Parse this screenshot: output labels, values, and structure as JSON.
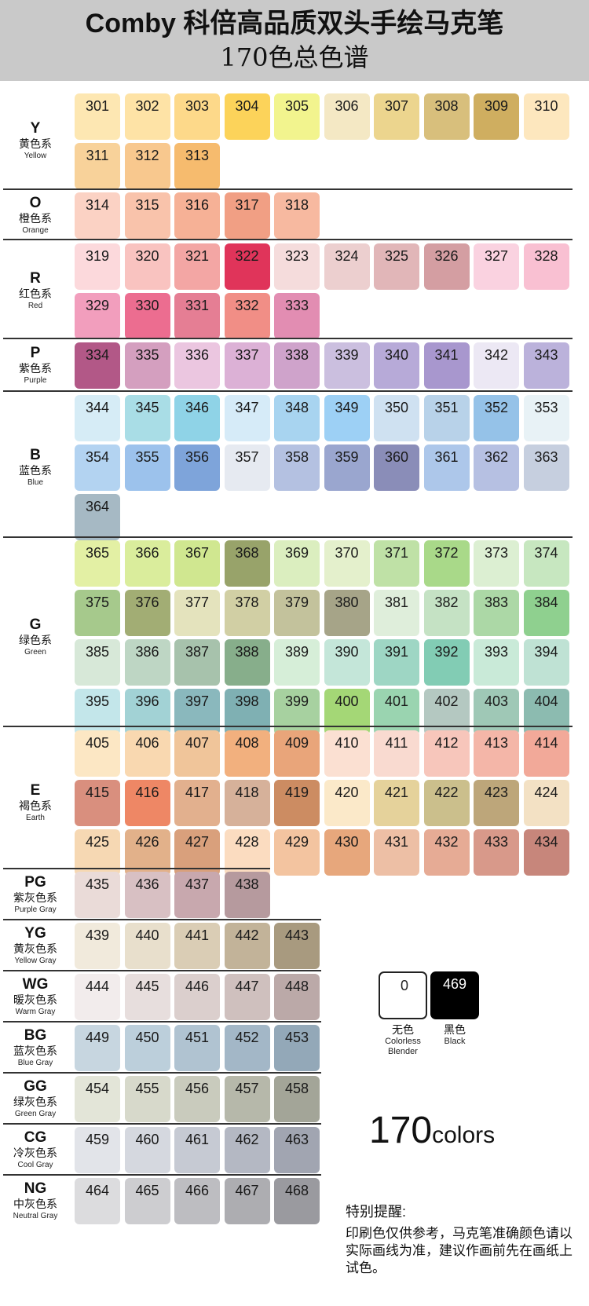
{
  "header": {
    "title_line1": "Comby 科倍高品质双头手绘马克笔",
    "title_line2": "170色总色谱"
  },
  "groups": [
    {
      "letter": "Y",
      "cn": "黄色系",
      "en": "Yellow",
      "swatches": [
        {
          "code": "301",
          "color": "#fde7b2"
        },
        {
          "code": "302",
          "color": "#fee3a6"
        },
        {
          "code": "303",
          "color": "#fdd98a"
        },
        {
          "code": "304",
          "color": "#fcd35a"
        },
        {
          "code": "305",
          "color": "#f2f48e"
        },
        {
          "code": "306",
          "color": "#f4e8c4"
        },
        {
          "code": "307",
          "color": "#ecd58e"
        },
        {
          "code": "308",
          "color": "#d8bf7c"
        },
        {
          "code": "309",
          "color": "#cfae60"
        },
        {
          "code": "310",
          "color": "#fde7be"
        },
        {
          "code": "311",
          "color": "#f8d29a"
        },
        {
          "code": "312",
          "color": "#f8c88e"
        },
        {
          "code": "313",
          "color": "#f6bb6e"
        }
      ]
    },
    {
      "letter": "O",
      "cn": "橙色系",
      "en": "Orange",
      "swatches": [
        {
          "code": "314",
          "color": "#fbd2c4"
        },
        {
          "code": "315",
          "color": "#f9c3ab"
        },
        {
          "code": "316",
          "color": "#f6b196"
        },
        {
          "code": "317",
          "color": "#f19f84"
        },
        {
          "code": "318",
          "color": "#f7b9a0"
        }
      ]
    },
    {
      "letter": "R",
      "cn": "红色系",
      "en": "Red",
      "swatches": [
        {
          "code": "319",
          "color": "#fcd9dc"
        },
        {
          "code": "320",
          "color": "#f9c3c0"
        },
        {
          "code": "321",
          "color": "#f3a6a4"
        },
        {
          "code": "322",
          "color": "#e0345a"
        },
        {
          "code": "323",
          "color": "#f5dcdc"
        },
        {
          "code": "324",
          "color": "#eccfcf"
        },
        {
          "code": "325",
          "color": "#e1b6b8"
        },
        {
          "code": "326",
          "color": "#d49ea2"
        },
        {
          "code": "327",
          "color": "#fad2e0"
        },
        {
          "code": "328",
          "color": "#f9c0d2"
        },
        {
          "code": "329",
          "color": "#f29ebd"
        },
        {
          "code": "330",
          "color": "#ec6d90"
        },
        {
          "code": "331",
          "color": "#e57e94"
        },
        {
          "code": "332",
          "color": "#f18e86"
        },
        {
          "code": "333",
          "color": "#e28db2"
        }
      ]
    },
    {
      "letter": "P",
      "cn": "紫色系",
      "en": "Purple",
      "swatches": [
        {
          "code": "334",
          "color": "#b25887"
        },
        {
          "code": "335",
          "color": "#d49fbf"
        },
        {
          "code": "336",
          "color": "#ebc6e0"
        },
        {
          "code": "337",
          "color": "#dcb1d6"
        },
        {
          "code": "338",
          "color": "#cfa3cb"
        },
        {
          "code": "339",
          "color": "#cbbfdf"
        },
        {
          "code": "340",
          "color": "#b7aad8"
        },
        {
          "code": "341",
          "color": "#a897ce"
        },
        {
          "code": "342",
          "color": "#ece8f4"
        },
        {
          "code": "343",
          "color": "#bbb2db"
        }
      ]
    },
    {
      "letter": "B",
      "cn": "蓝色系",
      "en": "Blue",
      "swatches": [
        {
          "code": "344",
          "color": "#d6ecf6"
        },
        {
          "code": "345",
          "color": "#a9dde6"
        },
        {
          "code": "346",
          "color": "#8fd3e7"
        },
        {
          "code": "347",
          "color": "#d6ebf8"
        },
        {
          "code": "348",
          "color": "#a8d4f0"
        },
        {
          "code": "349",
          "color": "#9dd0f5"
        },
        {
          "code": "350",
          "color": "#cfe1f1"
        },
        {
          "code": "351",
          "color": "#b8d2e9"
        },
        {
          "code": "352",
          "color": "#95c2e8"
        },
        {
          "code": "353",
          "color": "#e8f2f6"
        },
        {
          "code": "354",
          "color": "#b3d3f1"
        },
        {
          "code": "355",
          "color": "#9cc2ec"
        },
        {
          "code": "356",
          "color": "#7ea4da"
        },
        {
          "code": "357",
          "color": "#e6eaf1"
        },
        {
          "code": "358",
          "color": "#b4c1e1"
        },
        {
          "code": "359",
          "color": "#9aa6cf"
        },
        {
          "code": "360",
          "color": "#8a8db8"
        },
        {
          "code": "361",
          "color": "#adc7ea"
        },
        {
          "code": "362",
          "color": "#b6c0e2"
        },
        {
          "code": "363",
          "color": "#c6cfdf"
        },
        {
          "code": "364",
          "color": "#a6b9c4"
        }
      ]
    },
    {
      "letter": "G",
      "cn": "绿色系",
      "en": "Green",
      "swatches": [
        {
          "code": "365",
          "color": "#e3f0a4"
        },
        {
          "code": "366",
          "color": "#daed9c"
        },
        {
          "code": "367",
          "color": "#d0e790"
        },
        {
          "code": "368",
          "color": "#98a36a"
        },
        {
          "code": "369",
          "color": "#dbeebf"
        },
        {
          "code": "370",
          "color": "#e4f0cc"
        },
        {
          "code": "371",
          "color": "#bfe1a6"
        },
        {
          "code": "372",
          "color": "#a9d989"
        },
        {
          "code": "373",
          "color": "#dcefd2"
        },
        {
          "code": "374",
          "color": "#c7e7c0"
        },
        {
          "code": "375",
          "color": "#a6c98c"
        },
        {
          "code": "376",
          "color": "#a2ad74"
        },
        {
          "code": "377",
          "color": "#e4e3bd"
        },
        {
          "code": "378",
          "color": "#d1cfa4"
        },
        {
          "code": "379",
          "color": "#c3c29c"
        },
        {
          "code": "380",
          "color": "#a6a488"
        },
        {
          "code": "381",
          "color": "#dfeedb"
        },
        {
          "code": "382",
          "color": "#c5e2c4"
        },
        {
          "code": "383",
          "color": "#acd8a6"
        },
        {
          "code": "384",
          "color": "#8fd08f"
        },
        {
          "code": "385",
          "color": "#d7e8d8"
        },
        {
          "code": "386",
          "color": "#bed6c4"
        },
        {
          "code": "387",
          "color": "#a7c2ac"
        },
        {
          "code": "388",
          "color": "#87ae8b"
        },
        {
          "code": "389",
          "color": "#d6eed8"
        },
        {
          "code": "390",
          "color": "#c4e6d9"
        },
        {
          "code": "391",
          "color": "#9ed6c4"
        },
        {
          "code": "392",
          "color": "#82ccb4"
        },
        {
          "code": "393",
          "color": "#c9ead8"
        },
        {
          "code": "394",
          "color": "#bfe2d4"
        },
        {
          "code": "395",
          "color": "#c3e6ea"
        },
        {
          "code": "396",
          "color": "#a2d2d5"
        },
        {
          "code": "397",
          "color": "#8ab8bd"
        },
        {
          "code": "398",
          "color": "#7fb0b3"
        },
        {
          "code": "399",
          "color": "#a7d1a0"
        },
        {
          "code": "400",
          "color": "#a4d776"
        },
        {
          "code": "401",
          "color": "#9ad4b0"
        },
        {
          "code": "402",
          "color": "#b4c8c1"
        },
        {
          "code": "403",
          "color": "#9fc8b6"
        },
        {
          "code": "404",
          "color": "#8cbbb0"
        }
      ]
    },
    {
      "letter": "E",
      "cn": "褐色系",
      "en": "Earth",
      "swatches": [
        {
          "code": "405",
          "color": "#fce7c4"
        },
        {
          "code": "406",
          "color": "#f9d8b0"
        },
        {
          "code": "407",
          "color": "#f0c59a"
        },
        {
          "code": "408",
          "color": "#f2b07e"
        },
        {
          "code": "409",
          "color": "#e9a57a"
        },
        {
          "code": "410",
          "color": "#fbe0d2"
        },
        {
          "code": "411",
          "color": "#f9dad0"
        },
        {
          "code": "412",
          "color": "#f7c6bb"
        },
        {
          "code": "413",
          "color": "#f4b6a8"
        },
        {
          "code": "414",
          "color": "#f2a999"
        },
        {
          "code": "415",
          "color": "#d98f7e"
        },
        {
          "code": "416",
          "color": "#ee8765"
        },
        {
          "code": "417",
          "color": "#e2b08e"
        },
        {
          "code": "418",
          "color": "#d6b19a"
        },
        {
          "code": "419",
          "color": "#cc8c62"
        },
        {
          "code": "420",
          "color": "#fbe9c9"
        },
        {
          "code": "421",
          "color": "#e5d29b"
        },
        {
          "code": "422",
          "color": "#cbbf8c"
        },
        {
          "code": "423",
          "color": "#bda67a"
        },
        {
          "code": "424",
          "color": "#f3e1c4"
        },
        {
          "code": "425",
          "color": "#f6d8b3"
        },
        {
          "code": "426",
          "color": "#e2b18a"
        },
        {
          "code": "427",
          "color": "#d9a07c"
        },
        {
          "code": "428",
          "color": "#fbdcc0"
        },
        {
          "code": "429",
          "color": "#f3c4a0"
        },
        {
          "code": "430",
          "color": "#e7a77c"
        },
        {
          "code": "431",
          "color": "#edbfa5"
        },
        {
          "code": "432",
          "color": "#e6ab95"
        },
        {
          "code": "433",
          "color": "#d8998a"
        },
        {
          "code": "434",
          "color": "#c7867b"
        }
      ]
    },
    {
      "letter": "PG",
      "cn": "紫灰色系",
      "en": "Purple Gray",
      "swatches": [
        {
          "code": "435",
          "color": "#eadbd8"
        },
        {
          "code": "436",
          "color": "#d8c0c3"
        },
        {
          "code": "437",
          "color": "#c8a8ae"
        },
        {
          "code": "438",
          "color": "#b69a9e"
        }
      ]
    },
    {
      "letter": "YG",
      "cn": "黄灰色系",
      "en": "Yellow Gray",
      "swatches": [
        {
          "code": "439",
          "color": "#f1eadc"
        },
        {
          "code": "440",
          "color": "#e8dfcc"
        },
        {
          "code": "441",
          "color": "#dacdb5"
        },
        {
          "code": "442",
          "color": "#c2b399"
        },
        {
          "code": "443",
          "color": "#a89a7f"
        }
      ]
    },
    {
      "letter": "WG",
      "cn": "暖灰色系",
      "en": "Warm Gray",
      "swatches": [
        {
          "code": "444",
          "color": "#f2ecec"
        },
        {
          "code": "445",
          "color": "#e7dedd"
        },
        {
          "code": "446",
          "color": "#dbcfcd"
        },
        {
          "code": "447",
          "color": "#cfc0be"
        },
        {
          "code": "448",
          "color": "#bba9a8"
        }
      ]
    },
    {
      "letter": "BG",
      "cn": "蓝灰色系",
      "en": "Blue Gray",
      "swatches": [
        {
          "code": "449",
          "color": "#c7d6e0"
        },
        {
          "code": "450",
          "color": "#bccfdb"
        },
        {
          "code": "451",
          "color": "#b0c3d1"
        },
        {
          "code": "452",
          "color": "#a3b7c7"
        },
        {
          "code": "453",
          "color": "#93a8b8"
        }
      ]
    },
    {
      "letter": "GG",
      "cn": "绿灰色系",
      "en": "Green Gray",
      "swatches": [
        {
          "code": "454",
          "color": "#e3e5d8"
        },
        {
          "code": "455",
          "color": "#d7d9cb"
        },
        {
          "code": "456",
          "color": "#c9cbbd"
        },
        {
          "code": "457",
          "color": "#b6b8aa"
        },
        {
          "code": "458",
          "color": "#a3a598"
        }
      ]
    },
    {
      "letter": "CG",
      "cn": "冷灰色系",
      "en": "Cool Gray",
      "swatches": [
        {
          "code": "459",
          "color": "#e2e4e9"
        },
        {
          "code": "460",
          "color": "#d5d8df"
        },
        {
          "code": "461",
          "color": "#c6cad3"
        },
        {
          "code": "462",
          "color": "#b4b8c3"
        },
        {
          "code": "463",
          "color": "#a1a5b1"
        }
      ]
    },
    {
      "letter": "NG",
      "cn": "中灰色系",
      "en": "Neutral Gray",
      "swatches": [
        {
          "code": "464",
          "color": "#dcdcde"
        },
        {
          "code": "465",
          "color": "#cdcdd0"
        },
        {
          "code": "466",
          "color": "#bdbdc1"
        },
        {
          "code": "467",
          "color": "#adadb1"
        },
        {
          "code": "468",
          "color": "#9a9a9f"
        }
      ]
    }
  ],
  "special": [
    {
      "code": "0",
      "color": "#ffffff",
      "text_color": "#222222",
      "cn": "无色",
      "en": "Colorless Blender"
    },
    {
      "code": "469",
      "color": "#000000",
      "text_color": "#ffffff",
      "cn": "黑色",
      "en": "Black"
    }
  ],
  "count": {
    "number": "170",
    "unit": "colors"
  },
  "note": {
    "title": "特别提醒:",
    "body": "印刷色仅供参考，马克笔准确颜色请以实际画线为准，建议作画前先在画纸上试色。"
  }
}
